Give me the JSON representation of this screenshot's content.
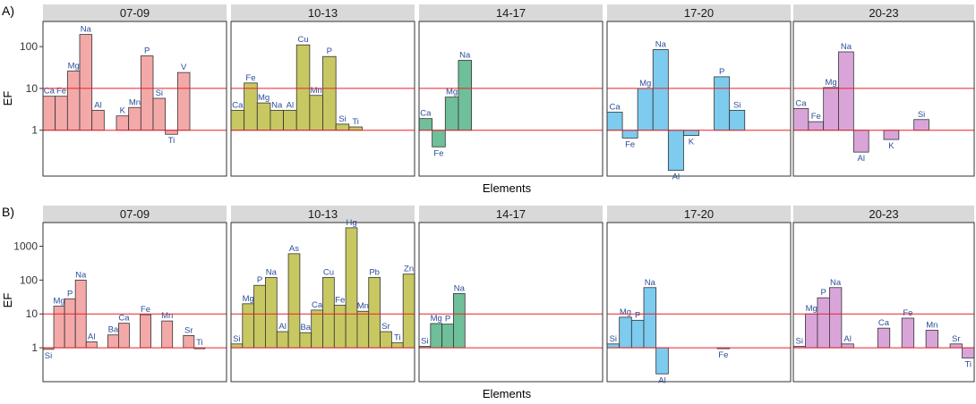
{
  "chart_data": [
    {
      "type": "bar",
      "tag": "A)",
      "yscale": "log",
      "ylabel": "EF",
      "xlabel": "Elements",
      "ylim": [
        0.08,
        400
      ],
      "yticks": [
        1,
        10,
        100
      ],
      "ytick_labels": [
        "1",
        "10",
        "100"
      ],
      "reference_lines": [
        1,
        10
      ],
      "grid": false,
      "panels": [
        {
          "label": "07-09",
          "color": "#f4a9a9",
          "n_slots": 15,
          "bars": [
            {
              "el": "Ca",
              "slot": 0,
              "value": 6.5
            },
            {
              "el": "Fe",
              "slot": 1,
              "value": 6.5
            },
            {
              "el": "Mg",
              "slot": 2,
              "value": 26
            },
            {
              "el": "Na",
              "slot": 3,
              "value": 195
            },
            {
              "el": "Al",
              "slot": 4,
              "value": 3
            },
            {
              "el": "K",
              "slot": 6,
              "value": 2.2
            },
            {
              "el": "Mn",
              "slot": 7,
              "value": 3.5
            },
            {
              "el": "P",
              "slot": 8,
              "value": 60
            },
            {
              "el": "Si",
              "slot": 9,
              "value": 5.8
            },
            {
              "el": "Ti",
              "slot": 10,
              "value": 0.8
            },
            {
              "el": "V",
              "slot": 11,
              "value": 24
            }
          ]
        },
        {
          "label": "10-13",
          "color": "#c8c862",
          "n_slots": 14,
          "bars": [
            {
              "el": "Ca",
              "slot": 0,
              "value": 3
            },
            {
              "el": "Fe",
              "slot": 1,
              "value": 13.5
            },
            {
              "el": "Mg",
              "slot": 2,
              "value": 4.5
            },
            {
              "el": "Na",
              "slot": 3,
              "value": 3
            },
            {
              "el": "Al",
              "slot": 4,
              "value": 3
            },
            {
              "el": "Cu",
              "slot": 5,
              "value": 110
            },
            {
              "el": "Mn",
              "slot": 6,
              "value": 6.8
            },
            {
              "el": "P",
              "slot": 7,
              "value": 58
            },
            {
              "el": "Si",
              "slot": 8,
              "value": 1.4
            },
            {
              "el": "Ti",
              "slot": 9,
              "value": 1.2
            }
          ]
        },
        {
          "label": "14-17",
          "color": "#6fbf9a",
          "n_slots": 14,
          "bars": [
            {
              "el": "Ca",
              "slot": 0,
              "value": 1.9
            },
            {
              "el": "Fe",
              "slot": 1,
              "value": 0.4
            },
            {
              "el": "Mg",
              "slot": 2,
              "value": 6.2
            },
            {
              "el": "Na",
              "slot": 3,
              "value": 47
            }
          ]
        },
        {
          "label": "17-20",
          "color": "#7dcbee",
          "n_slots": 12,
          "bars": [
            {
              "el": "Ca",
              "slot": 0,
              "value": 2.7
            },
            {
              "el": "Fe",
              "slot": 1,
              "value": 0.65
            },
            {
              "el": "Mg",
              "slot": 2,
              "value": 10
            },
            {
              "el": "Na",
              "slot": 3,
              "value": 85
            },
            {
              "el": "Al",
              "slot": 4,
              "value": 0.11
            },
            {
              "el": "K",
              "slot": 5,
              "value": 0.75
            },
            {
              "el": "P",
              "slot": 7,
              "value": 19
            },
            {
              "el": "Si",
              "slot": 8,
              "value": 3
            }
          ]
        },
        {
          "label": "20-23",
          "color": "#d9a5d9",
          "n_slots": 12,
          "bars": [
            {
              "el": "Ca",
              "slot": 0,
              "value": 3.3
            },
            {
              "el": "Fe",
              "slot": 1,
              "value": 1.6
            },
            {
              "el": "Mg",
              "slot": 2,
              "value": 10.5
            },
            {
              "el": "Na",
              "slot": 3,
              "value": 75
            },
            {
              "el": "Al",
              "slot": 4,
              "value": 0.3
            },
            {
              "el": "K",
              "slot": 6,
              "value": 0.6
            },
            {
              "el": "Si",
              "slot": 8,
              "value": 1.8
            }
          ]
        }
      ]
    },
    {
      "type": "bar",
      "tag": "B)",
      "yscale": "log",
      "ylabel": "EF",
      "xlabel": "Elements",
      "ylim": [
        0.1,
        5000
      ],
      "yticks": [
        1,
        10,
        100,
        1000
      ],
      "ytick_labels": [
        "1",
        "10",
        "100",
        "1000"
      ],
      "reference_lines": [
        1,
        10
      ],
      "grid": false,
      "panels": [
        {
          "label": "07-09",
          "color": "#f4a9a9",
          "n_slots": 17,
          "bars": [
            {
              "el": "Si",
              "slot": 0,
              "value": 0.9
            },
            {
              "el": "Mg",
              "slot": 1,
              "value": 17
            },
            {
              "el": "P",
              "slot": 2,
              "value": 28
            },
            {
              "el": "Na",
              "slot": 3,
              "value": 100
            },
            {
              "el": "Al",
              "slot": 4,
              "value": 1.5
            },
            {
              "el": "Ba",
              "slot": 6,
              "value": 2.4
            },
            {
              "el": "Ca",
              "slot": 7,
              "value": 5.3
            },
            {
              "el": "Fe",
              "slot": 9,
              "value": 9.5
            },
            {
              "el": "Mn",
              "slot": 11,
              "value": 6.2
            },
            {
              "el": "Sr",
              "slot": 13,
              "value": 2.3
            },
            {
              "el": "Ti",
              "slot": 14,
              "value": 1
            }
          ]
        },
        {
          "label": "10-13",
          "color": "#c8c862",
          "n_slots": 16,
          "bars": [
            {
              "el": "Si",
              "slot": 0,
              "value": 1.3
            },
            {
              "el": "Mg",
              "slot": 1,
              "value": 20
            },
            {
              "el": "P",
              "slot": 2,
              "value": 70
            },
            {
              "el": "Na",
              "slot": 3,
              "value": 120
            },
            {
              "el": "Al",
              "slot": 4,
              "value": 3
            },
            {
              "el": "As",
              "slot": 5,
              "value": 600
            },
            {
              "el": "Ba",
              "slot": 6,
              "value": 2.8
            },
            {
              "el": "Ca",
              "slot": 7,
              "value": 13
            },
            {
              "el": "Cu",
              "slot": 8,
              "value": 120
            },
            {
              "el": "Fe",
              "slot": 9,
              "value": 18
            },
            {
              "el": "Hg",
              "slot": 10,
              "value": 3500
            },
            {
              "el": "Mn",
              "slot": 11,
              "value": 12
            },
            {
              "el": "Pb",
              "slot": 12,
              "value": 120
            },
            {
              "el": "Sr",
              "slot": 13,
              "value": 3
            },
            {
              "el": "Ti",
              "slot": 14,
              "value": 1.4
            },
            {
              "el": "Zn",
              "slot": 15,
              "value": 150
            }
          ]
        },
        {
          "label": "14-17",
          "color": "#6fbf9a",
          "n_slots": 16,
          "bars": [
            {
              "el": "Si",
              "slot": 0,
              "value": 1.1
            },
            {
              "el": "Mg",
              "slot": 1,
              "value": 5.2
            },
            {
              "el": "P",
              "slot": 2,
              "value": 5
            },
            {
              "el": "Na",
              "slot": 3,
              "value": 40
            }
          ]
        },
        {
          "label": "17-20",
          "color": "#7dcbee",
          "n_slots": 15,
          "bars": [
            {
              "el": "Si",
              "slot": 0,
              "value": 1.3
            },
            {
              "el": "Mg",
              "slot": 1,
              "value": 8
            },
            {
              "el": "P",
              "slot": 2,
              "value": 6.5
            },
            {
              "el": "Na",
              "slot": 3,
              "value": 60
            },
            {
              "el": "Al",
              "slot": 4,
              "value": 0.17
            },
            {
              "el": "Fe",
              "slot": 9,
              "value": 0.95
            }
          ]
        },
        {
          "label": "20-23",
          "color": "#d9a5d9",
          "n_slots": 15,
          "bars": [
            {
              "el": "Si",
              "slot": 0,
              "value": 1.1
            },
            {
              "el": "Mg",
              "slot": 1,
              "value": 10
            },
            {
              "el": "P",
              "slot": 2,
              "value": 30
            },
            {
              "el": "Na",
              "slot": 3,
              "value": 60
            },
            {
              "el": "Al",
              "slot": 4,
              "value": 1.3
            },
            {
              "el": "Ca",
              "slot": 7,
              "value": 3.8
            },
            {
              "el": "Fe",
              "slot": 9,
              "value": 7.5
            },
            {
              "el": "Mn",
              "slot": 11,
              "value": 3.3
            },
            {
              "el": "Sr",
              "slot": 13,
              "value": 1.3
            },
            {
              "el": "Ti",
              "slot": 14,
              "value": 0.5
            }
          ]
        }
      ]
    }
  ],
  "style": {
    "reference_line_color": "#e8202a",
    "label_color": "#2b4e9b",
    "strip_color": "#d9d9d9",
    "bar_stroke": "#333333"
  }
}
